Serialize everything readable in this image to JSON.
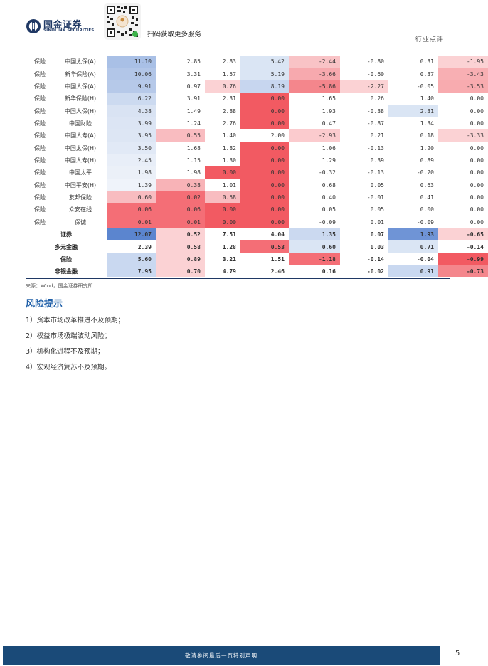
{
  "header": {
    "company_cn": "国金证券",
    "company_en": "SINOLINK SECURITIES",
    "qr_caption": "扫码获取更多服务",
    "report_type": "行业点评",
    "logo_icon": "sinolink-logo-icon",
    "qr_icon": "qr-code-icon"
  },
  "table": {
    "rows": [
      {
        "sector": "保险",
        "name": "中国太保(A)",
        "values": [
          "11.10",
          "2.85",
          "2.83",
          "5.42",
          "-2.44",
          "-0.80",
          "0.31",
          "-1.95"
        ]
      },
      {
        "sector": "保险",
        "name": "新华保险(A)",
        "values": [
          "10.06",
          "3.31",
          "1.57",
          "5.19",
          "-3.66",
          "-0.60",
          "0.37",
          "-3.43"
        ]
      },
      {
        "sector": "保险",
        "name": "中国人保(A)",
        "values": [
          "9.91",
          "0.97",
          "0.76",
          "8.19",
          "-5.86",
          "-2.27",
          "-0.05",
          "-3.53"
        ]
      },
      {
        "sector": "保险",
        "name": "新华保险(H)",
        "values": [
          "6.22",
          "3.91",
          "2.31",
          "0.00",
          "1.65",
          "0.26",
          "1.40",
          "0.00"
        ]
      },
      {
        "sector": "保险",
        "name": "中国人保(H)",
        "values": [
          "4.38",
          "1.49",
          "2.88",
          "0.00",
          "1.93",
          "-0.38",
          "2.31",
          "0.00"
        ]
      },
      {
        "sector": "保险",
        "name": "中国财险",
        "values": [
          "3.99",
          "1.24",
          "2.76",
          "0.00",
          "0.47",
          "-0.87",
          "1.34",
          "0.00"
        ]
      },
      {
        "sector": "保险",
        "name": "中国人寿(A)",
        "values": [
          "3.95",
          "0.55",
          "1.40",
          "2.00",
          "-2.93",
          "0.21",
          "0.18",
          "-3.33"
        ]
      },
      {
        "sector": "保险",
        "name": "中国太保(H)",
        "values": [
          "3.50",
          "1.68",
          "1.82",
          "0.00",
          "1.06",
          "-0.13",
          "1.20",
          "0.00"
        ]
      },
      {
        "sector": "保险",
        "name": "中国人寿(H)",
        "values": [
          "2.45",
          "1.15",
          "1.30",
          "0.00",
          "1.29",
          "0.39",
          "0.89",
          "0.00"
        ]
      },
      {
        "sector": "保险",
        "name": "中国太平",
        "values": [
          "1.98",
          "1.98",
          "0.00",
          "0.00",
          "-0.32",
          "-0.13",
          "-0.20",
          "0.00"
        ]
      },
      {
        "sector": "保险",
        "name": "中国平安(H)",
        "values": [
          "1.39",
          "0.38",
          "1.01",
          "0.00",
          "0.68",
          "0.05",
          "0.63",
          "0.00"
        ]
      },
      {
        "sector": "保险",
        "name": "友邦保险",
        "values": [
          "0.60",
          "0.02",
          "0.58",
          "0.00",
          "0.40",
          "-0.01",
          "0.41",
          "0.00"
        ]
      },
      {
        "sector": "保险",
        "name": "众安在线",
        "values": [
          "0.06",
          "0.06",
          "0.00",
          "0.00",
          "0.05",
          "0.05",
          "0.00",
          "0.00"
        ]
      },
      {
        "sector": "保险",
        "name": "保诚",
        "values": [
          "0.01",
          "0.01",
          "0.00",
          "0.00",
          "-0.09",
          "0.01",
          "-0.09",
          "0.00"
        ]
      }
    ],
    "summary": [
      {
        "label": "证券",
        "values": [
          "12.07",
          "0.52",
          "7.51",
          "4.04",
          "1.35",
          "0.07",
          "1.93",
          "-0.65"
        ]
      },
      {
        "label": "多元金融",
        "values": [
          "2.39",
          "0.58",
          "1.28",
          "0.53",
          "0.60",
          "0.03",
          "0.71",
          "-0.14"
        ]
      },
      {
        "label": "保险",
        "values": [
          "5.60",
          "0.89",
          "3.21",
          "1.51",
          "-1.18",
          "-0.14",
          "-0.04",
          "-0.99"
        ]
      },
      {
        "label": "非银金融",
        "values": [
          "7.95",
          "0.70",
          "4.79",
          "2.46",
          "0.16",
          "-0.02",
          "0.91",
          "-0.73"
        ]
      }
    ],
    "cell_colors": {
      "rows": [
        [
          "#a9c0e6",
          "#ffffff",
          "#ffffff",
          "#dae5f4",
          "#f9c3c6",
          "#ffffff",
          "#ffffff",
          "#fbd2d4"
        ],
        [
          "#b2c6e8",
          "#ffffff",
          "#ffffff",
          "#dae5f4",
          "#f7a9ae",
          "#ffffff",
          "#ffffff",
          "#f8afb3"
        ],
        [
          "#b6c9e9",
          "#ffffff",
          "#fbd2d4",
          "#c7d6ef",
          "#f4868c",
          "#fbd2d4",
          "#ffffff",
          "#f8abaf"
        ],
        [
          "#ccdaf0",
          "#ffffff",
          "#ffffff",
          "#f25a62",
          "#ffffff",
          "#ffffff",
          "#ffffff",
          "#ffffff"
        ],
        [
          "#d9e3f3",
          "#ffffff",
          "#ffffff",
          "#f25a62",
          "#ffffff",
          "#ffffff",
          "#dae5f4",
          "#ffffff"
        ],
        [
          "#dce5f4",
          "#ffffff",
          "#ffffff",
          "#f25a62",
          "#ffffff",
          "#ffffff",
          "#ffffff",
          "#ffffff"
        ],
        [
          "#dde6f4",
          "#f9bcc0",
          "#ffffff",
          "#ffffff",
          "#fbcbce",
          "#ffffff",
          "#ffffff",
          "#fbd2d4"
        ],
        [
          "#e1e9f6",
          "#ffffff",
          "#ffffff",
          "#f25a62",
          "#ffffff",
          "#ffffff",
          "#ffffff",
          "#ffffff"
        ],
        [
          "#e8eef8",
          "#ffffff",
          "#ffffff",
          "#f25a62",
          "#ffffff",
          "#ffffff",
          "#ffffff",
          "#ffffff"
        ],
        [
          "#ebf0f8",
          "#ffffff",
          "#f25a62",
          "#f25a62",
          "#ffffff",
          "#ffffff",
          "#ffffff",
          "#ffffff"
        ],
        [
          "#eff3fa",
          "#f8b3b7",
          "#ffffff",
          "#f25a62",
          "#ffffff",
          "#ffffff",
          "#ffffff",
          "#ffffff"
        ],
        [
          "#f8bcc0",
          "#f46e76",
          "#f8bcc0",
          "#f25a62",
          "#ffffff",
          "#ffffff",
          "#ffffff",
          "#ffffff"
        ],
        [
          "#f46e76",
          "#f46e76",
          "#f25a62",
          "#f25a62",
          "#ffffff",
          "#ffffff",
          "#ffffff",
          "#ffffff"
        ],
        [
          "#f46e76",
          "#f46e76",
          "#f25a62",
          "#f25a62",
          "#ffffff",
          "#ffffff",
          "#ffffff",
          "#ffffff"
        ]
      ],
      "summary": [
        [
          "#5b85cf",
          "#fbd2d4",
          "#ffffff",
          "#ffffff",
          "#cbd9f0",
          "#ffffff",
          "#6f94d6",
          "#fbd2d4"
        ],
        [
          "#ffffff",
          "#fbd2d4",
          "#ffffff",
          "#f46e76",
          "#dae5f4",
          "#ffffff",
          "#dae5f4",
          "#ffffff"
        ],
        [
          "#c9d8f0",
          "#fbd2d4",
          "#ffffff",
          "#ffffff",
          "#f46e76",
          "#ffffff",
          "#ffffff",
          "#f25a62"
        ],
        [
          "#c9d8f0",
          "#fbd2d4",
          "#ffffff",
          "#ffffff",
          "#ffffff",
          "#ffffff",
          "#c9d8f0",
          "#f4868c"
        ]
      ]
    },
    "source": "来源：Wind，国金证券研究所"
  },
  "risk": {
    "title": "风险提示",
    "items": [
      "1）资本市场改革推进不及预期；",
      "2）权益市场极端波动风险；",
      "3）机构化进程不及预期；",
      "4）宏观经济复苏不及预期。"
    ]
  },
  "footer": {
    "disclaimer": "敬请参阅最后一页特别声明",
    "page_number": "5"
  },
  "colors": {
    "brand_navy": "#1f3864",
    "heading_blue": "#1f5fa8",
    "footer_bar": "#1a4a78"
  }
}
